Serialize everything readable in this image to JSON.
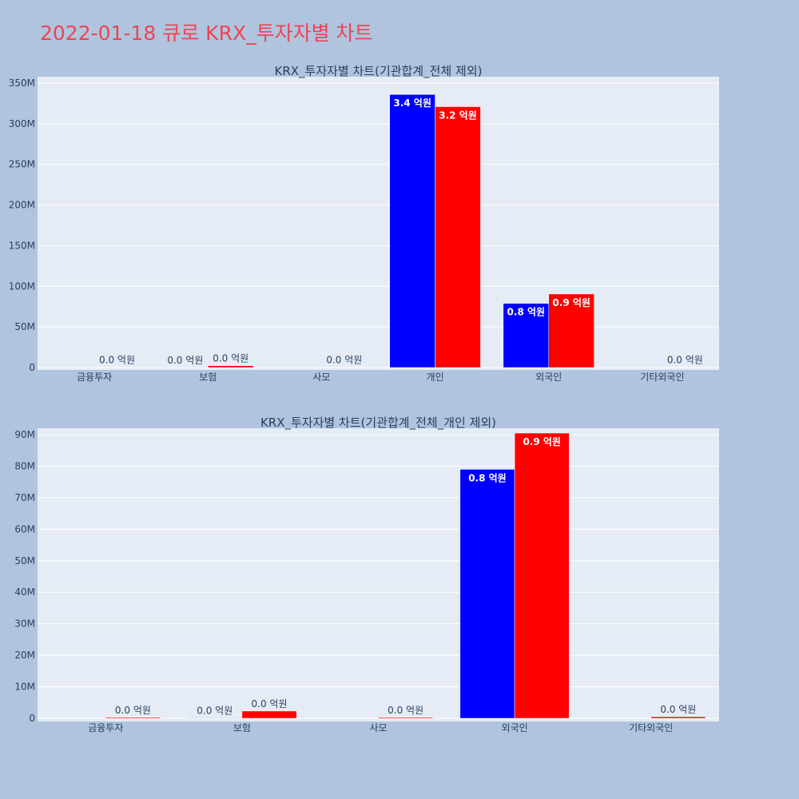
{
  "page": {
    "title": "2022-01-18 큐로 KRX_투자자별 차트"
  },
  "colors": {
    "page_bg": "#b0c4de",
    "plot_bg": "#e5ecf6",
    "grid": "#ffffff",
    "text": "#2a3f5f",
    "buy": "#0000ff",
    "sell": "#ff0000"
  },
  "chart_data": [
    {
      "type": "bar",
      "title": "KRX_투자자별 차트(기관합계_전체 제외)",
      "categories": [
        "금융투자",
        "보험",
        "사모",
        "개인",
        "외국인",
        "기타외국인"
      ],
      "y_tick_values": [
        0,
        50000000,
        100000000,
        150000000,
        200000000,
        250000000,
        300000000,
        350000000
      ],
      "y_tick_labels": [
        "0",
        "50M",
        "100M",
        "150M",
        "200M",
        "250M",
        "300M",
        "350M"
      ],
      "ylim": [
        0,
        350000000
      ],
      "grid": true,
      "series": [
        {
          "values": [
            0,
            150000,
            0,
            336000000,
            79000000,
            0
          ],
          "labels": [
            "",
            "0.0 억원",
            "",
            "3.4 억원",
            "0.8 억원",
            ""
          ]
        },
        {
          "values": [
            300000,
            2300000,
            300000,
            321000000,
            90500000,
            500000
          ],
          "labels": [
            "0.0 억원",
            "0.0 억원",
            "0.0 억원",
            "3.2 억원",
            "0.9 억원",
            "0.0 억원"
          ]
        }
      ]
    },
    {
      "type": "bar",
      "title": "KRX_투자자별 차트(기관합계_전체_개인 제외)",
      "categories": [
        "금융투자",
        "보험",
        "사모",
        "외국인",
        "기타외국인"
      ],
      "y_tick_values": [
        0,
        10000000,
        20000000,
        30000000,
        40000000,
        50000000,
        60000000,
        70000000,
        80000000,
        90000000
      ],
      "y_tick_labels": [
        "0",
        "10M",
        "20M",
        "30M",
        "40M",
        "50M",
        "60M",
        "70M",
        "80M",
        "90M"
      ],
      "ylim": [
        0,
        90000000
      ],
      "grid": true,
      "series": [
        {
          "values": [
            0,
            150000,
            0,
            79000000,
            0
          ],
          "labels": [
            "",
            "0.0 억원",
            "",
            "0.8 억원",
            ""
          ]
        },
        {
          "values": [
            300000,
            2300000,
            300000,
            90500000,
            500000
          ],
          "labels": [
            "0.0 억원",
            "0.0 억원",
            "0.0 억원",
            "0.9 억원",
            "0.0 억원"
          ]
        }
      ]
    }
  ]
}
